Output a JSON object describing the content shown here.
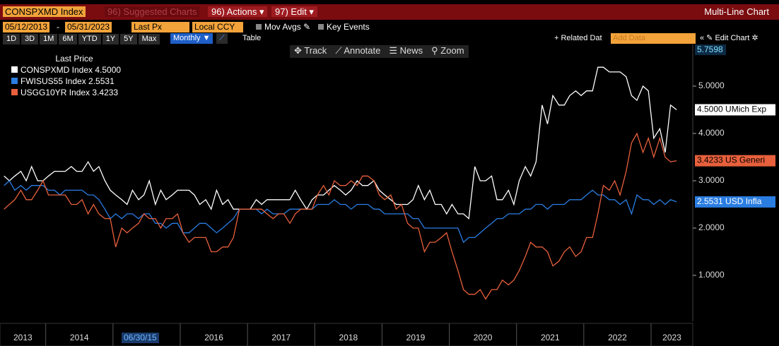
{
  "toolbar": {
    "security": "CONSPXMD Index",
    "suggested": "96) Suggested Charts",
    "actions": "96) Actions",
    "edit": "97) Edit",
    "window_title": "Multi-Line Chart"
  },
  "settings": {
    "start_date": "05/12/2013",
    "date_separator": "-",
    "end_date": "05/31/2023",
    "field": "Last Px",
    "currency": "Local CCY",
    "mov_avgs": "Mov Avgs",
    "key_events": "Key Events"
  },
  "periods": [
    "1D",
    "3D",
    "1M",
    "6M",
    "YTD",
    "1Y",
    "5Y",
    "Max"
  ],
  "frequency": "Monthly",
  "table_button": "Table",
  "related_data": "+ Related Dat",
  "add_data": "Add Data",
  "edit_chart": "Edit Chart",
  "chart_tools": [
    "Track",
    "Annotate",
    "News",
    "Zoom"
  ],
  "cursor_label": "06/30/15",
  "chart_data": {
    "type": "line",
    "legend_title": "Last Price",
    "ymax_marker": 5.7598,
    "xlim": [
      2013.32,
      2023.62
    ],
    "xticks": [
      2013,
      2014,
      2015,
      2016,
      2017,
      2018,
      2019,
      2020,
      2021,
      2022,
      2023
    ],
    "ylim": [
      0.03,
      5.88
    ],
    "yticks": [
      {
        "value": 1,
        "label": "1.0000"
      },
      {
        "value": 2,
        "label": "2.0000"
      },
      {
        "value": 3,
        "label": "3.0000"
      },
      {
        "value": 4,
        "label": "4.0000"
      },
      {
        "value": 5,
        "label": "5.0000"
      }
    ],
    "grid": false,
    "x": [
      2013.38,
      2013.46,
      2013.54,
      2013.63,
      2013.71,
      2013.79,
      2013.88,
      2013.96,
      2014.04,
      2014.13,
      2014.21,
      2014.29,
      2014.38,
      2014.46,
      2014.54,
      2014.63,
      2014.71,
      2014.79,
      2014.88,
      2014.96,
      2015.04,
      2015.13,
      2015.21,
      2015.29,
      2015.38,
      2015.46,
      2015.54,
      2015.63,
      2015.71,
      2015.79,
      2015.88,
      2015.96,
      2016.04,
      2016.13,
      2016.21,
      2016.29,
      2016.38,
      2016.46,
      2016.54,
      2016.63,
      2016.71,
      2016.79,
      2016.88,
      2016.96,
      2017.04,
      2017.13,
      2017.21,
      2017.29,
      2017.38,
      2017.46,
      2017.54,
      2017.63,
      2017.71,
      2017.79,
      2017.88,
      2017.96,
      2018.04,
      2018.13,
      2018.21,
      2018.29,
      2018.38,
      2018.46,
      2018.54,
      2018.63,
      2018.71,
      2018.79,
      2018.88,
      2018.96,
      2019.04,
      2019.13,
      2019.21,
      2019.29,
      2019.38,
      2019.46,
      2019.54,
      2019.63,
      2019.71,
      2019.79,
      2019.88,
      2019.96,
      2020.04,
      2020.13,
      2020.21,
      2020.29,
      2020.38,
      2020.46,
      2020.54,
      2020.63,
      2020.71,
      2020.79,
      2020.88,
      2020.96,
      2021.04,
      2021.13,
      2021.21,
      2021.29,
      2021.38,
      2021.46,
      2021.54,
      2021.63,
      2021.71,
      2021.79,
      2021.88,
      2021.96,
      2022.04,
      2022.13,
      2022.21,
      2022.29,
      2022.38,
      2022.46,
      2022.54,
      2022.63,
      2022.71,
      2022.79,
      2022.88,
      2022.96,
      2023.04,
      2023.13,
      2023.21,
      2023.29,
      2023.38
    ],
    "series": [
      {
        "name": "CONSPXMD Index",
        "last_label": "4.5000",
        "tag": "UMich Exp",
        "color": "#ffffff",
        "tag_text_color": "#000000",
        "values": [
          3.1,
          3.0,
          3.1,
          3.2,
          3.0,
          3.3,
          3.0,
          3.0,
          3.1,
          3.2,
          3.2,
          3.2,
          3.3,
          3.2,
          3.2,
          3.4,
          3.2,
          3.3,
          3.0,
          2.8,
          2.7,
          2.6,
          2.5,
          2.8,
          2.6,
          2.7,
          3.0,
          2.5,
          2.8,
          2.6,
          2.7,
          2.8,
          2.8,
          2.8,
          2.7,
          2.5,
          2.6,
          2.4,
          2.8,
          2.5,
          2.6,
          2.4,
          2.4,
          2.4,
          2.4,
          2.6,
          2.5,
          2.6,
          2.6,
          2.6,
          2.6,
          2.6,
          2.8,
          2.6,
          2.4,
          2.6,
          2.7,
          2.7,
          2.8,
          2.9,
          2.8,
          2.7,
          2.8,
          3.0,
          2.9,
          2.9,
          3.0,
          2.8,
          2.7,
          2.6,
          2.5,
          2.5,
          2.5,
          2.6,
          2.9,
          2.6,
          2.8,
          2.5,
          2.5,
          2.3,
          2.5,
          2.3,
          2.3,
          2.2,
          3.3,
          3.0,
          3.0,
          3.1,
          2.6,
          2.6,
          2.8,
          2.5,
          3.0,
          3.3,
          3.1,
          3.4,
          4.6,
          4.2,
          4.8,
          4.6,
          4.6,
          4.8,
          4.9,
          4.8,
          4.9,
          4.9,
          5.4,
          5.4,
          5.3,
          5.3,
          5.3,
          5.2,
          4.8,
          4.7,
          5.0,
          4.9,
          3.9,
          4.1,
          3.6,
          4.6,
          4.5
        ]
      },
      {
        "name": "FWISUS55 Index",
        "last_label": "2.5531",
        "tag": "USD Infla",
        "color": "#2a7de1",
        "tag_text_color": "#ffffff",
        "values": [
          2.9,
          3.0,
          2.8,
          2.9,
          2.8,
          2.9,
          2.9,
          2.9,
          2.8,
          2.8,
          2.7,
          2.8,
          2.8,
          2.8,
          2.8,
          2.7,
          2.7,
          2.6,
          2.4,
          2.2,
          2.3,
          2.2,
          2.3,
          2.3,
          2.2,
          2.3,
          2.3,
          2.1,
          2.1,
          2.0,
          2.1,
          2.1,
          1.9,
          1.9,
          2.0,
          2.1,
          2.1,
          2.0,
          1.9,
          2.0,
          2.1,
          2.2,
          2.4,
          2.4,
          2.4,
          2.4,
          2.3,
          2.4,
          2.3,
          2.3,
          2.3,
          2.4,
          2.4,
          2.4,
          2.4,
          2.4,
          2.5,
          2.5,
          2.5,
          2.6,
          2.5,
          2.5,
          2.4,
          2.5,
          2.5,
          2.5,
          2.4,
          2.4,
          2.3,
          2.3,
          2.3,
          2.3,
          2.3,
          2.2,
          2.2,
          2.0,
          2.0,
          2.0,
          2.0,
          2.0,
          2.0,
          2.0,
          1.7,
          1.8,
          1.8,
          1.9,
          2.0,
          2.1,
          2.2,
          2.2,
          2.3,
          2.3,
          2.3,
          2.4,
          2.4,
          2.5,
          2.5,
          2.4,
          2.5,
          2.5,
          2.5,
          2.6,
          2.6,
          2.6,
          2.7,
          2.8,
          2.7,
          2.7,
          2.6,
          2.6,
          2.5,
          2.6,
          2.3,
          2.7,
          2.6,
          2.6,
          2.5,
          2.6,
          2.5,
          2.6,
          2.5531
        ]
      },
      {
        "name": "USGG10YR Index",
        "last_label": "3.4233",
        "tag": "US Generi",
        "color": "#e8603c",
        "tag_text_color": "#000000",
        "values": [
          2.4,
          2.5,
          2.6,
          2.8,
          2.6,
          2.6,
          2.8,
          3.0,
          2.7,
          2.7,
          2.7,
          2.7,
          2.5,
          2.5,
          2.6,
          2.3,
          2.5,
          2.3,
          2.2,
          2.2,
          1.6,
          2.0,
          1.9,
          2.0,
          2.1,
          2.3,
          2.2,
          2.2,
          2.0,
          2.2,
          2.2,
          2.3,
          1.9,
          1.7,
          1.8,
          1.8,
          1.8,
          1.5,
          1.5,
          1.6,
          1.6,
          1.8,
          2.4,
          2.4,
          2.4,
          2.4,
          2.4,
          2.3,
          2.2,
          2.3,
          2.3,
          2.1,
          2.3,
          2.4,
          2.4,
          2.4,
          2.7,
          2.9,
          2.7,
          3.0,
          2.9,
          2.9,
          3.0,
          2.9,
          3.1,
          3.1,
          3.0,
          2.7,
          2.6,
          2.7,
          2.4,
          2.5,
          2.1,
          2.0,
          2.0,
          1.5,
          1.7,
          1.7,
          1.8,
          1.9,
          1.5,
          1.1,
          0.7,
          0.6,
          0.6,
          0.7,
          0.5,
          0.7,
          0.7,
          0.9,
          0.8,
          0.9,
          1.1,
          1.4,
          1.7,
          1.6,
          1.6,
          1.5,
          1.2,
          1.3,
          1.5,
          1.6,
          1.4,
          1.5,
          1.8,
          1.8,
          2.3,
          2.9,
          2.8,
          3.0,
          2.7,
          3.2,
          3.8,
          4.0,
          3.6,
          3.9,
          3.5,
          3.9,
          3.5,
          3.4,
          3.4233
        ]
      }
    ]
  }
}
